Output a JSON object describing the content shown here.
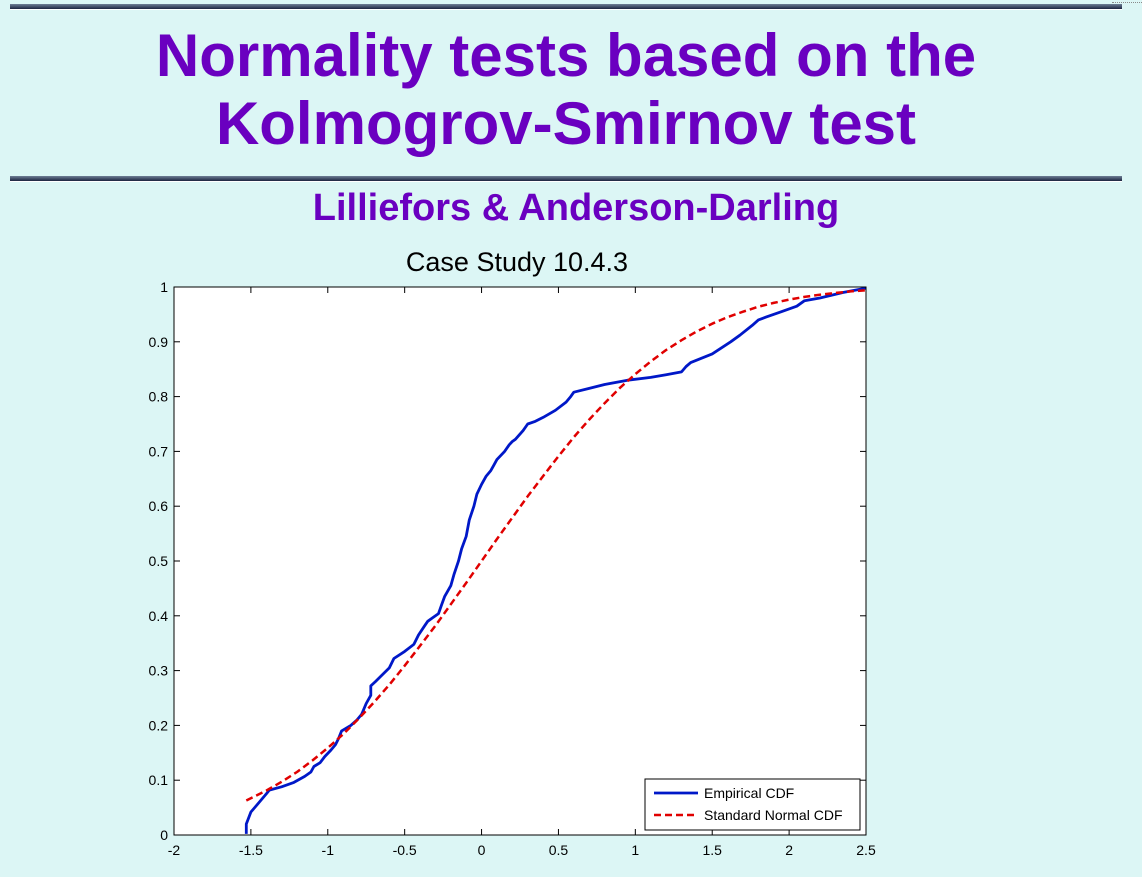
{
  "slide": {
    "title_lines": [
      "Normality tests based on the",
      "Kolmogrov-Smirnov test"
    ],
    "subtitle": "Lilliefors & Anderson-Darling"
  },
  "colors": {
    "background": "#dcf6f5",
    "title": "#6a00c0",
    "empirical": "#0018c8",
    "normal": "#e00000"
  },
  "chart_data": {
    "type": "line",
    "title": "Case Study 10.4.3",
    "xlabel": "",
    "ylabel": "",
    "xlim": [
      -2,
      2.5
    ],
    "ylim": [
      0,
      1
    ],
    "xticks": [
      -2,
      -1.5,
      -1,
      -0.5,
      0,
      0.5,
      1,
      1.5,
      2,
      2.5
    ],
    "xtick_labels": [
      "-2",
      "-1.5",
      "-1",
      "-0.5",
      "0",
      "0.5",
      "1",
      "1.5",
      "2",
      "2.5"
    ],
    "yticks": [
      0,
      0.1,
      0.2,
      0.3,
      0.4,
      0.5,
      0.6,
      0.7,
      0.8,
      0.9,
      1
    ],
    "ytick_labels": [
      "0",
      "0.1",
      "0.2",
      "0.3",
      "0.4",
      "0.5",
      "0.6",
      "0.7",
      "0.8",
      "0.9",
      "1"
    ],
    "grid": false,
    "legend_position": "bottom-right",
    "series": [
      {
        "name": "Empirical CDF",
        "style": "solid",
        "color": "#0018c8",
        "x": [
          -1.53,
          -1.53,
          -1.5,
          -1.46,
          -1.4,
          -1.38,
          -1.3,
          -1.22,
          -1.15,
          -1.11,
          -1.09,
          -1.05,
          -1.02,
          -0.98,
          -0.95,
          -0.93,
          -0.91,
          -0.85,
          -0.81,
          -0.78,
          -0.75,
          -0.72,
          -0.72,
          -0.69,
          -0.6,
          -0.57,
          -0.5,
          -0.44,
          -0.41,
          -0.37,
          -0.35,
          -0.32,
          -0.28,
          -0.26,
          -0.24,
          -0.2,
          -0.18,
          -0.15,
          -0.13,
          -0.1,
          -0.08,
          -0.05,
          -0.03,
          0,
          0.03,
          0.06,
          0.08,
          0.1,
          0.15,
          0.18,
          0.2,
          0.22,
          0.27,
          0.3,
          0.35,
          0.4,
          0.48,
          0.55,
          0.58,
          0.6,
          0.7,
          0.8,
          0.95,
          1.1,
          1.2,
          1.3,
          1.33,
          1.36,
          1.5,
          1.62,
          1.68,
          1.76,
          1.8,
          1.85,
          1.95,
          2.05,
          2.1,
          2.2,
          2.35,
          2.5
        ],
        "y": [
          0.002,
          0.02,
          0.042,
          0.055,
          0.075,
          0.082,
          0.088,
          0.096,
          0.107,
          0.115,
          0.125,
          0.132,
          0.143,
          0.155,
          0.165,
          0.176,
          0.19,
          0.2,
          0.21,
          0.22,
          0.24,
          0.255,
          0.272,
          0.28,
          0.305,
          0.322,
          0.335,
          0.348,
          0.365,
          0.382,
          0.39,
          0.396,
          0.404,
          0.42,
          0.435,
          0.455,
          0.475,
          0.5,
          0.522,
          0.545,
          0.575,
          0.6,
          0.622,
          0.64,
          0.655,
          0.665,
          0.675,
          0.685,
          0.7,
          0.712,
          0.718,
          0.722,
          0.738,
          0.75,
          0.755,
          0.762,
          0.775,
          0.79,
          0.8,
          0.808,
          0.815,
          0.822,
          0.83,
          0.835,
          0.84,
          0.845,
          0.855,
          0.862,
          0.878,
          0.9,
          0.912,
          0.93,
          0.94,
          0.945,
          0.955,
          0.965,
          0.975,
          0.98,
          0.99,
          0.998
        ]
      },
      {
        "name": "Standard Normal CDF",
        "style": "dashed",
        "color": "#e00000",
        "x": [
          -1.53,
          -1.4,
          -1.3,
          -1.2,
          -1.1,
          -1.0,
          -0.9,
          -0.8,
          -0.7,
          -0.6,
          -0.5,
          -0.4,
          -0.3,
          -0.2,
          -0.1,
          0,
          0.1,
          0.2,
          0.3,
          0.4,
          0.5,
          0.6,
          0.7,
          0.8,
          0.9,
          1.0,
          1.1,
          1.2,
          1.3,
          1.4,
          1.5,
          1.6,
          1.7,
          1.8,
          1.9,
          2.0,
          2.1,
          2.2,
          2.3,
          2.4,
          2.5
        ],
        "y": [
          0.063,
          0.081,
          0.097,
          0.115,
          0.136,
          0.159,
          0.184,
          0.212,
          0.242,
          0.274,
          0.309,
          0.345,
          0.382,
          0.421,
          0.46,
          0.5,
          0.54,
          0.579,
          0.618,
          0.655,
          0.691,
          0.726,
          0.758,
          0.788,
          0.816,
          0.841,
          0.864,
          0.885,
          0.903,
          0.919,
          0.933,
          0.945,
          0.955,
          0.964,
          0.971,
          0.977,
          0.982,
          0.986,
          0.989,
          0.992,
          0.994
        ]
      }
    ]
  }
}
